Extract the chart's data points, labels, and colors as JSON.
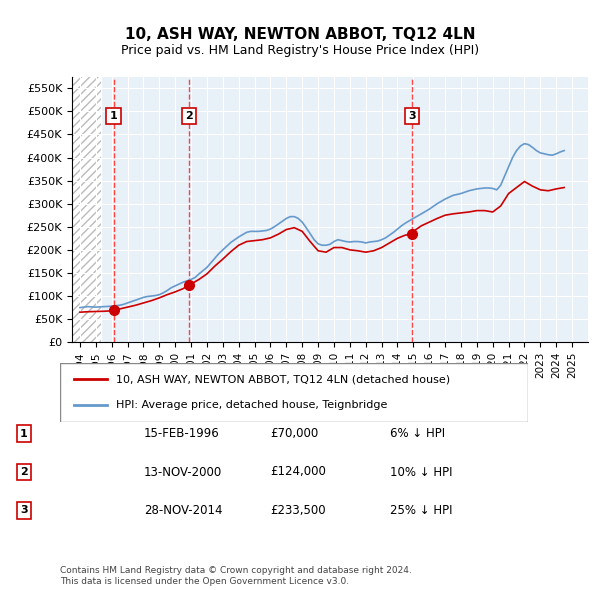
{
  "title": "10, ASH WAY, NEWTON ABBOT, TQ12 4LN",
  "subtitle": "Price paid vs. HM Land Registry's House Price Index (HPI)",
  "ylabel_left": "",
  "background_color": "#ffffff",
  "plot_bg_color": "#e8f0f8",
  "hatch_color": "#cccccc",
  "grid_color": "#ffffff",
  "red_line_color": "#cc0000",
  "blue_line_color": "#6699cc",
  "sale_marker_color": "#cc0000",
  "dashed_line_color": "#ff4444",
  "ylim": [
    0,
    575000
  ],
  "yticks": [
    0,
    50000,
    100000,
    150000,
    200000,
    250000,
    300000,
    350000,
    400000,
    450000,
    500000,
    550000
  ],
  "ytick_labels": [
    "£0",
    "£50K",
    "£100K",
    "£150K",
    "£200K",
    "£250K",
    "£300K",
    "£350K",
    "£400K",
    "£450K",
    "£500K",
    "£550K"
  ],
  "xlim_start": 1993.5,
  "xlim_end": 2026.0,
  "xticks": [
    1994,
    1995,
    1996,
    1997,
    1998,
    1999,
    2000,
    2001,
    2002,
    2003,
    2004,
    2005,
    2006,
    2007,
    2008,
    2009,
    2010,
    2011,
    2012,
    2013,
    2014,
    2015,
    2016,
    2017,
    2018,
    2019,
    2020,
    2021,
    2022,
    2023,
    2024,
    2025
  ],
  "sales": [
    {
      "num": 1,
      "date": "15-FEB-1996",
      "year": 1996.12,
      "price": 70000,
      "pct": "6%",
      "dir": "↓"
    },
    {
      "num": 2,
      "date": "13-NOV-2000",
      "year": 2000.87,
      "price": 124000,
      "pct": "10%",
      "dir": "↓"
    },
    {
      "num": 3,
      "date": "28-NOV-2014",
      "year": 2014.91,
      "price": 233500,
      "pct": "25%",
      "dir": "↓"
    }
  ],
  "legend_line1": "10, ASH WAY, NEWTON ABBOT, TQ12 4LN (detached house)",
  "legend_line2": "HPI: Average price, detached house, Teignbridge",
  "footnote": "Contains HM Land Registry data © Crown copyright and database right 2024.\nThis data is licensed under the Open Government Licence v3.0.",
  "hpi_data": {
    "years": [
      1994.0,
      1994.25,
      1994.5,
      1994.75,
      1995.0,
      1995.25,
      1995.5,
      1995.75,
      1996.0,
      1996.25,
      1996.5,
      1996.75,
      1997.0,
      1997.25,
      1997.5,
      1997.75,
      1998.0,
      1998.25,
      1998.5,
      1998.75,
      1999.0,
      1999.25,
      1999.5,
      1999.75,
      2000.0,
      2000.25,
      2000.5,
      2000.75,
      2001.0,
      2001.25,
      2001.5,
      2001.75,
      2002.0,
      2002.25,
      2002.5,
      2002.75,
      2003.0,
      2003.25,
      2003.5,
      2003.75,
      2004.0,
      2004.25,
      2004.5,
      2004.75,
      2005.0,
      2005.25,
      2005.5,
      2005.75,
      2006.0,
      2006.25,
      2006.5,
      2006.75,
      2007.0,
      2007.25,
      2007.5,
      2007.75,
      2008.0,
      2008.25,
      2008.5,
      2008.75,
      2009.0,
      2009.25,
      2009.5,
      2009.75,
      2010.0,
      2010.25,
      2010.5,
      2010.75,
      2011.0,
      2011.25,
      2011.5,
      2011.75,
      2012.0,
      2012.25,
      2012.5,
      2012.75,
      2013.0,
      2013.25,
      2013.5,
      2013.75,
      2014.0,
      2014.25,
      2014.5,
      2014.75,
      2015.0,
      2015.25,
      2015.5,
      2015.75,
      2016.0,
      2016.25,
      2016.5,
      2016.75,
      2017.0,
      2017.25,
      2017.5,
      2017.75,
      2018.0,
      2018.25,
      2018.5,
      2018.75,
      2019.0,
      2019.25,
      2019.5,
      2019.75,
      2020.0,
      2020.25,
      2020.5,
      2020.75,
      2021.0,
      2021.25,
      2021.5,
      2021.75,
      2022.0,
      2022.25,
      2022.5,
      2022.75,
      2023.0,
      2023.25,
      2023.5,
      2023.75,
      2024.0,
      2024.25,
      2024.5
    ],
    "values": [
      75000,
      76000,
      77000,
      76500,
      76000,
      76500,
      77000,
      77500,
      78000,
      79000,
      80000,
      82000,
      85000,
      88000,
      91000,
      94000,
      97000,
      99000,
      100000,
      101000,
      103000,
      107000,
      112000,
      118000,
      122000,
      126000,
      130000,
      133000,
      136000,
      140000,
      148000,
      155000,
      162000,
      172000,
      182000,
      192000,
      200000,
      208000,
      216000,
      222000,
      228000,
      233000,
      238000,
      240000,
      240000,
      240000,
      241000,
      242000,
      245000,
      250000,
      256000,
      262000,
      268000,
      272000,
      272000,
      268000,
      260000,
      248000,
      235000,
      222000,
      213000,
      210000,
      210000,
      212000,
      218000,
      222000,
      220000,
      218000,
      217000,
      218000,
      218000,
      217000,
      215000,
      217000,
      218000,
      219000,
      222000,
      226000,
      232000,
      238000,
      245000,
      252000,
      258000,
      263000,
      268000,
      273000,
      278000,
      283000,
      288000,
      294000,
      300000,
      305000,
      310000,
      314000,
      318000,
      320000,
      322000,
      325000,
      328000,
      330000,
      332000,
      333000,
      334000,
      334000,
      333000,
      330000,
      340000,
      360000,
      380000,
      400000,
      415000,
      425000,
      430000,
      428000,
      422000,
      415000,
      410000,
      408000,
      406000,
      405000,
      408000,
      412000,
      415000
    ]
  },
  "price_line_data": {
    "years": [
      1994.0,
      1994.5,
      1995.0,
      1995.5,
      1996.0,
      1996.12,
      1996.5,
      1997.0,
      1997.5,
      1998.0,
      1998.5,
      1999.0,
      1999.5,
      2000.0,
      2000.5,
      2000.87,
      2001.0,
      2001.5,
      2002.0,
      2002.5,
      2003.0,
      2003.5,
      2004.0,
      2004.5,
      2005.0,
      2005.5,
      2006.0,
      2006.5,
      2007.0,
      2007.5,
      2008.0,
      2008.5,
      2009.0,
      2009.5,
      2010.0,
      2010.5,
      2011.0,
      2011.5,
      2012.0,
      2012.5,
      2013.0,
      2013.5,
      2014.0,
      2014.5,
      2014.91,
      2015.0,
      2015.5,
      2016.0,
      2016.5,
      2017.0,
      2017.5,
      2018.0,
      2018.5,
      2019.0,
      2019.5,
      2020.0,
      2020.5,
      2021.0,
      2021.5,
      2022.0,
      2022.5,
      2023.0,
      2023.5,
      2024.0,
      2024.5
    ],
    "values": [
      65000,
      66000,
      66500,
      67000,
      68000,
      70000,
      72000,
      76000,
      80000,
      85000,
      90000,
      96000,
      103000,
      109000,
      116000,
      124000,
      126000,
      136000,
      148000,
      165000,
      180000,
      196000,
      210000,
      218000,
      220000,
      222000,
      226000,
      234000,
      244000,
      248000,
      240000,
      218000,
      198000,
      195000,
      205000,
      205000,
      200000,
      198000,
      195000,
      198000,
      205000,
      215000,
      225000,
      232000,
      233500,
      240000,
      252000,
      260000,
      268000,
      275000,
      278000,
      280000,
      282000,
      285000,
      285000,
      282000,
      295000,
      322000,
      335000,
      348000,
      338000,
      330000,
      328000,
      332000,
      335000
    ]
  }
}
